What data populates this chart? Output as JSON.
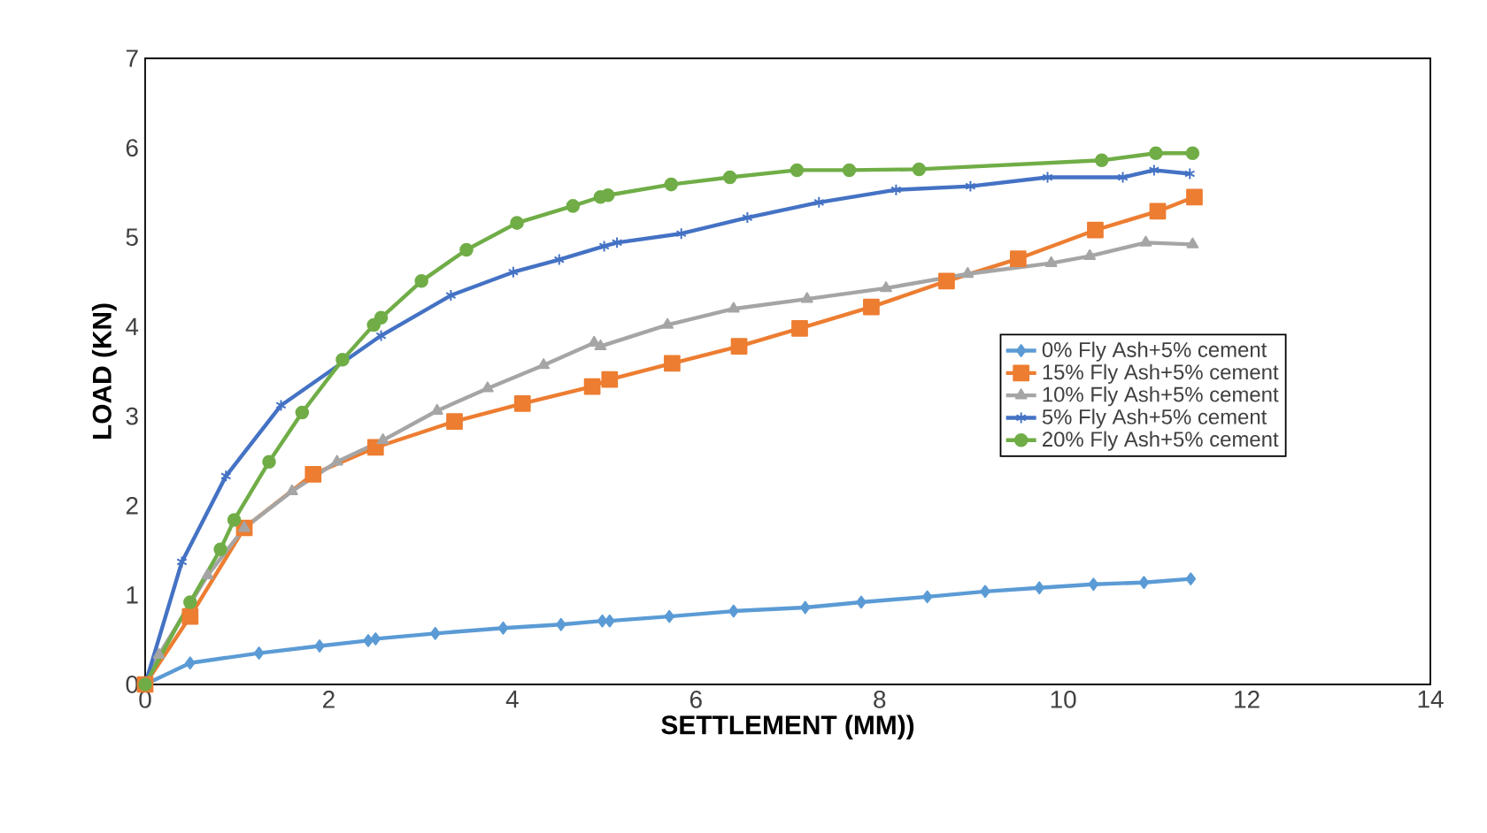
{
  "chart_data": {
    "type": "line",
    "xlabel": "SETTLEMENT (MM))",
    "ylabel": "LOAD (KN)",
    "xlim": [
      0,
      14
    ],
    "xticks": [
      0,
      2,
      4,
      6,
      8,
      10,
      12,
      14
    ],
    "ylim": [
      0,
      7
    ],
    "yticks": [
      0,
      1,
      2,
      3,
      4,
      5,
      6,
      7
    ],
    "grid": false,
    "legend": "right",
    "line_style": "solid",
    "series": [
      {
        "name": "0% Fly Ash+5% cement",
        "color": "#5b9bd5",
        "marker": "diamond",
        "x": [
          0,
          0.49,
          1.24,
          1.9,
          2.43,
          2.51,
          3.16,
          3.9,
          4.53,
          4.98,
          5.06,
          5.71,
          6.41,
          7.19,
          7.8,
          8.52,
          9.15,
          9.74,
          10.33,
          10.88,
          11.39
        ],
        "values": [
          0,
          0.24,
          0.35,
          0.43,
          0.49,
          0.51,
          0.57,
          0.63,
          0.67,
          0.71,
          0.71,
          0.76,
          0.82,
          0.86,
          0.92,
          0.98,
          1.04,
          1.08,
          1.12,
          1.14,
          1.18
        ]
      },
      {
        "name": "15% Fly Ash+5% cement",
        "color": "#ed7d31",
        "marker": "square",
        "x": [
          0,
          0.49,
          1.08,
          1.83,
          2.51,
          3.37,
          4.11,
          4.87,
          5.06,
          5.74,
          6.47,
          7.13,
          7.91,
          8.73,
          9.51,
          10.35,
          11.03,
          11.43
        ],
        "values": [
          0,
          0.76,
          1.75,
          2.35,
          2.65,
          2.94,
          3.14,
          3.33,
          3.41,
          3.59,
          3.78,
          3.98,
          4.22,
          4.51,
          4.76,
          5.08,
          5.29,
          5.45
        ]
      },
      {
        "name": "10% Fly Ash+5% cement",
        "color": "#a5a5a5",
        "marker": "triangle",
        "x": [
          0,
          0.15,
          0.68,
          1.08,
          1.6,
          2.09,
          2.59,
          3.18,
          3.73,
          4.34,
          4.89,
          4.96,
          5.69,
          6.41,
          7.21,
          8.07,
          8.96,
          9.87,
          10.29,
          10.9,
          11.41
        ],
        "values": [
          0,
          0.33,
          1.22,
          1.75,
          2.16,
          2.49,
          2.73,
          3.06,
          3.31,
          3.57,
          3.82,
          3.78,
          4.02,
          4.2,
          4.31,
          4.43,
          4.59,
          4.71,
          4.79,
          4.94,
          4.92
        ]
      },
      {
        "name": "5% Fly Ash+5% cement",
        "color": "#4472c4",
        "marker": "cross",
        "x": [
          0,
          0.4,
          0.88,
          1.48,
          2.57,
          3.33,
          4.01,
          4.51,
          5.0,
          5.14,
          5.84,
          6.56,
          7.34,
          8.18,
          8.99,
          9.83,
          10.65,
          10.99,
          11.38
        ],
        "values": [
          0,
          1.37,
          2.33,
          3.12,
          3.9,
          4.35,
          4.61,
          4.75,
          4.9,
          4.94,
          5.04,
          5.22,
          5.39,
          5.53,
          5.57,
          5.67,
          5.67,
          5.75,
          5.71
        ]
      },
      {
        "name": "20% Fly Ash+5% cement",
        "color": "#70ad47",
        "marker": "circle",
        "x": [
          0,
          0.49,
          0.82,
          0.97,
          1.35,
          1.71,
          2.15,
          2.49,
          2.57,
          3.01,
          3.5,
          4.05,
          4.66,
          4.96,
          5.04,
          5.73,
          6.37,
          7.1,
          7.67,
          8.43,
          10.42,
          11.01,
          11.41
        ],
        "values": [
          0,
          0.92,
          1.51,
          1.84,
          2.49,
          3.04,
          3.63,
          4.02,
          4.1,
          4.51,
          4.86,
          5.16,
          5.35,
          5.45,
          5.47,
          5.59,
          5.67,
          5.75,
          5.75,
          5.76,
          5.86,
          5.94,
          5.94
        ]
      }
    ]
  }
}
